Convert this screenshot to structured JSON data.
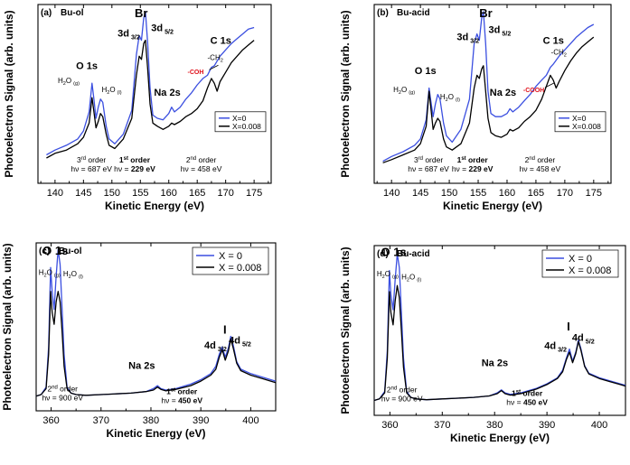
{
  "chart_data": [
    {
      "id": "a",
      "type": "line",
      "panel_label": "(a)",
      "sample": "Bu-ol",
      "xlabel": "Kinetic Energy (eV)",
      "ylabel": "Photoelectron Signal (arb. units)",
      "xlim": [
        137,
        178
      ],
      "ylim": [
        0,
        1
      ],
      "xticks": [
        140,
        145,
        150,
        155,
        160,
        165,
        170,
        175
      ],
      "legend": {
        "position": "right-middle",
        "size": "small",
        "entries": [
          "X=0",
          "X=0.008"
        ]
      },
      "colors": {
        "X=0": "#3b4fe0",
        "X=0.008": "#000000"
      },
      "series": [
        {
          "name": "X=0",
          "x": [
            138.5,
            140,
            142,
            144,
            145,
            146,
            146.5,
            146.8,
            147.2,
            147.6,
            148,
            148.4,
            149,
            149.5,
            150.5,
            152,
            153.5,
            154.3,
            154.8,
            155.2,
            155.6,
            155.9,
            156.3,
            156.7,
            157.2,
            158,
            159,
            160,
            160.5,
            161,
            162,
            163,
            164,
            165,
            166,
            166.8,
            167.5,
            168,
            169,
            170,
            171,
            172,
            173,
            174,
            175
          ],
          "y": [
            0.1,
            0.13,
            0.16,
            0.2,
            0.25,
            0.37,
            0.55,
            0.46,
            0.33,
            0.4,
            0.45,
            0.43,
            0.28,
            0.2,
            0.17,
            0.23,
            0.38,
            0.73,
            0.85,
            0.82,
            0.96,
            1.0,
            0.8,
            0.52,
            0.35,
            0.33,
            0.32,
            0.36,
            0.4,
            0.37,
            0.4,
            0.45,
            0.49,
            0.54,
            0.58,
            0.6,
            0.65,
            0.66,
            0.72,
            0.76,
            0.8,
            0.83,
            0.86,
            0.89,
            0.9
          ]
        },
        {
          "name": "X=0.008",
          "x": [
            138.5,
            140,
            142,
            144,
            145,
            146,
            146.5,
            146.8,
            147.2,
            147.6,
            148,
            148.4,
            149,
            149.5,
            150.5,
            152,
            153.5,
            154.3,
            154.8,
            155.2,
            155.6,
            155.9,
            156.3,
            156.7,
            157.2,
            158,
            159,
            160,
            160.5,
            161,
            162,
            163,
            164,
            165,
            166,
            166.8,
            167.5,
            168,
            168.5,
            169,
            170,
            171,
            172,
            173,
            174,
            175
          ],
          "y": [
            0.08,
            0.11,
            0.13,
            0.17,
            0.21,
            0.3,
            0.46,
            0.38,
            0.27,
            0.31,
            0.36,
            0.34,
            0.23,
            0.16,
            0.14,
            0.2,
            0.33,
            0.6,
            0.72,
            0.7,
            0.8,
            0.82,
            0.64,
            0.42,
            0.3,
            0.28,
            0.26,
            0.28,
            0.3,
            0.29,
            0.31,
            0.34,
            0.36,
            0.39,
            0.44,
            0.52,
            0.58,
            0.55,
            0.5,
            0.56,
            0.62,
            0.68,
            0.72,
            0.76,
            0.79,
            0.82
          ]
        }
      ],
      "peak_labels": {
        "br": "Br",
        "d32": "3d 3/2",
        "d52": "3d 5/2",
        "o1s": "O 1s",
        "h2og": "H2O (g)",
        "h2ol": "H2O (l)",
        "na2s": "Na 2s",
        "c1s": "C 1s",
        "ch2": "-CH2",
        "func": "-COH"
      },
      "order_labels": {
        "third": "3rd order",
        "third_hv": "hν = 687 eV",
        "first": "1st order",
        "first_hv": "hν = 229 eV",
        "second": "2nd order",
        "second_hv": "hν = 458 eV"
      }
    },
    {
      "id": "b",
      "type": "line",
      "panel_label": "(b)",
      "sample": "Bu-acid",
      "xlabel": "Kinetic Energy (eV)",
      "ylabel": "Photoelectron Signal (arb. units)",
      "xlim": [
        137,
        178
      ],
      "ylim": [
        0,
        1
      ],
      "xticks": [
        140,
        145,
        150,
        155,
        160,
        165,
        170,
        175
      ],
      "legend": {
        "position": "right-middle",
        "size": "small",
        "entries": [
          "X=0",
          "X=0.008"
        ]
      },
      "colors": {
        "X=0": "#3b4fe0",
        "X=0.008": "#000000"
      },
      "series": [
        {
          "name": "X=0",
          "x": [
            138.5,
            140,
            142,
            144,
            145,
            146,
            146.5,
            146.8,
            147.2,
            147.6,
            148,
            148.4,
            149,
            149.5,
            150.5,
            152,
            153.5,
            154.3,
            154.8,
            155.2,
            155.6,
            155.9,
            156.3,
            156.7,
            157.2,
            158,
            159,
            160,
            160.5,
            161,
            162,
            163,
            164,
            165,
            166,
            166.8,
            167.5,
            168,
            169,
            170,
            171,
            172,
            173,
            174,
            175
          ],
          "y": [
            0.06,
            0.09,
            0.12,
            0.16,
            0.2,
            0.32,
            0.52,
            0.44,
            0.34,
            0.42,
            0.48,
            0.45,
            0.3,
            0.22,
            0.18,
            0.26,
            0.45,
            0.8,
            0.86,
            0.82,
            0.96,
            1.0,
            0.8,
            0.5,
            0.36,
            0.34,
            0.34,
            0.36,
            0.39,
            0.37,
            0.4,
            0.44,
            0.48,
            0.53,
            0.57,
            0.6,
            0.65,
            0.67,
            0.72,
            0.76,
            0.8,
            0.84,
            0.87,
            0.9,
            0.92
          ]
        },
        {
          "name": "X=0.008",
          "x": [
            138.5,
            140,
            142,
            144,
            145,
            146,
            146.5,
            146.8,
            147.2,
            147.6,
            148,
            148.4,
            149,
            149.5,
            150.5,
            152,
            153.5,
            154.3,
            154.8,
            155.2,
            155.6,
            155.9,
            156.3,
            156.7,
            157.2,
            158,
            159,
            160,
            160.5,
            161,
            162,
            163,
            164,
            165,
            166,
            166.8,
            167.5,
            168,
            168.5,
            169,
            170,
            171,
            172,
            173,
            174,
            175
          ],
          "y": [
            0.05,
            0.07,
            0.1,
            0.13,
            0.17,
            0.28,
            0.5,
            0.4,
            0.26,
            0.3,
            0.33,
            0.31,
            0.2,
            0.15,
            0.13,
            0.17,
            0.3,
            0.52,
            0.6,
            0.58,
            0.64,
            0.66,
            0.5,
            0.33,
            0.24,
            0.22,
            0.21,
            0.23,
            0.26,
            0.25,
            0.27,
            0.31,
            0.34,
            0.38,
            0.45,
            0.53,
            0.6,
            0.57,
            0.52,
            0.56,
            0.63,
            0.69,
            0.74,
            0.78,
            0.81,
            0.84
          ]
        }
      ],
      "peak_labels": {
        "br": "Br",
        "d32": "3d 3/2",
        "d52": "3d 5/2",
        "o1s": "O 1s",
        "h2og": "H2O (g)",
        "h2ol": "H2O (l)",
        "na2s": "Na 2s",
        "c1s": "C 1s",
        "ch2": "-CH2",
        "func": "-COOH"
      },
      "order_labels": {
        "third": "3rd order",
        "third_hv": "hν = 687 eV",
        "first": "1st order",
        "first_hv": "hν = 229 eV",
        "second": "2nd order",
        "second_hv": "hν = 458 eV"
      }
    },
    {
      "id": "c",
      "type": "line",
      "panel_label": "(c)",
      "sample": "Bu-ol",
      "xlabel": "Kinetic Energy (eV)",
      "ylabel": "Photoelectron Signal (arb. units)",
      "xlim": [
        357,
        405
      ],
      "ylim": [
        0,
        1
      ],
      "xticks": [
        360,
        370,
        380,
        390,
        400
      ],
      "legend": {
        "position": "top-right",
        "size": "large",
        "entries": [
          "X = 0",
          "X = 0.008"
        ]
      },
      "colors": {
        "X = 0": "#3b4fe0",
        "X = 0.008": "#000000"
      },
      "series": [
        {
          "name": "X = 0",
          "x": [
            357,
            358,
            359,
            359.5,
            359.9,
            360.2,
            360.6,
            361,
            361.4,
            361.8,
            362.2,
            362.6,
            363.2,
            364,
            365,
            367,
            370,
            373,
            376,
            379,
            380.5,
            381.3,
            382,
            383,
            385,
            388,
            390,
            392,
            393,
            393.7,
            394.3,
            394.9,
            395.5,
            396,
            396.5,
            397.2,
            398,
            400,
            402,
            404,
            405
          ],
          "y": [
            0.02,
            0.03,
            0.08,
            0.35,
            0.88,
            0.72,
            0.6,
            0.82,
            1.0,
            0.9,
            0.6,
            0.3,
            0.08,
            0.04,
            0.03,
            0.025,
            0.03,
            0.035,
            0.04,
            0.05,
            0.07,
            0.09,
            0.07,
            0.06,
            0.07,
            0.1,
            0.13,
            0.17,
            0.22,
            0.3,
            0.35,
            0.28,
            0.34,
            0.42,
            0.36,
            0.25,
            0.2,
            0.17,
            0.15,
            0.13,
            0.12
          ]
        },
        {
          "name": "X = 0.008",
          "x": [
            357,
            358,
            359,
            359.5,
            359.9,
            360.2,
            360.6,
            361,
            361.4,
            361.8,
            362.2,
            362.6,
            363.2,
            364,
            365,
            367,
            370,
            373,
            376,
            379,
            380.5,
            381.3,
            382,
            383,
            385,
            388,
            390,
            392,
            393,
            393.7,
            394.3,
            394.9,
            395.5,
            396,
            396.5,
            397.2,
            398,
            400,
            402,
            404,
            405
          ],
          "y": [
            0.02,
            0.03,
            0.07,
            0.3,
            0.72,
            0.58,
            0.5,
            0.65,
            0.72,
            0.65,
            0.45,
            0.22,
            0.07,
            0.04,
            0.03,
            0.025,
            0.03,
            0.035,
            0.04,
            0.05,
            0.06,
            0.08,
            0.065,
            0.055,
            0.065,
            0.09,
            0.12,
            0.16,
            0.2,
            0.28,
            0.33,
            0.26,
            0.32,
            0.4,
            0.34,
            0.24,
            0.19,
            0.16,
            0.14,
            0.12,
            0.11
          ]
        }
      ],
      "peak_labels": {
        "o1s": "O 1s",
        "h2og": "H2O (g)",
        "h2ol": "H2O (l)",
        "na2s": "Na 2s",
        "iodine": "I",
        "d32": "4d 3/2",
        "d52": "4d 5/2"
      },
      "order_labels": {
        "second": "2nd order",
        "second_hv": "hν = 900 eV",
        "first": "1st order",
        "first_hv": "hν = 450 eV"
      }
    },
    {
      "id": "d",
      "type": "line",
      "panel_label": "(d)",
      "sample": "Bu-acid",
      "xlabel": "Kinetic Energy (eV)",
      "ylabel": "Photoelectron Signal (arb. units)",
      "xlim": [
        357,
        405
      ],
      "ylim": [
        0,
        1
      ],
      "xticks": [
        360,
        370,
        380,
        390,
        400
      ],
      "legend": {
        "position": "top-right",
        "size": "large",
        "entries": [
          "X = 0",
          "X = 0.008"
        ]
      },
      "colors": {
        "X = 0": "#3b4fe0",
        "X = 0.008": "#000000"
      },
      "series": [
        {
          "name": "X = 0",
          "x": [
            357,
            358,
            359,
            359.5,
            359.9,
            360.2,
            360.6,
            361,
            361.4,
            361.8,
            362.2,
            362.6,
            363.2,
            364,
            365,
            367,
            370,
            373,
            376,
            379,
            380.5,
            381.3,
            382,
            383,
            385,
            388,
            390,
            392,
            393,
            393.7,
            394.3,
            394.9,
            395.5,
            396,
            396.5,
            397.2,
            398,
            400,
            402,
            404,
            405
          ],
          "y": [
            0.02,
            0.03,
            0.08,
            0.35,
            0.88,
            0.72,
            0.62,
            0.82,
            0.99,
            0.9,
            0.6,
            0.3,
            0.08,
            0.04,
            0.03,
            0.025,
            0.03,
            0.035,
            0.04,
            0.05,
            0.07,
            0.09,
            0.07,
            0.06,
            0.07,
            0.1,
            0.13,
            0.17,
            0.22,
            0.3,
            0.36,
            0.28,
            0.34,
            0.42,
            0.36,
            0.25,
            0.2,
            0.17,
            0.15,
            0.13,
            0.12
          ]
        },
        {
          "name": "X = 0.008",
          "x": [
            357,
            358,
            359,
            359.5,
            359.9,
            360.2,
            360.6,
            361,
            361.4,
            361.8,
            362.2,
            362.6,
            363.2,
            364,
            365,
            367,
            370,
            373,
            376,
            379,
            380.5,
            381.3,
            382,
            383,
            385,
            388,
            390,
            392,
            393,
            393.7,
            394.3,
            394.9,
            395.5,
            396,
            396.5,
            397.2,
            398,
            400,
            402,
            404,
            405
          ],
          "y": [
            0.02,
            0.03,
            0.07,
            0.3,
            0.74,
            0.6,
            0.52,
            0.68,
            0.78,
            0.7,
            0.48,
            0.24,
            0.07,
            0.04,
            0.03,
            0.025,
            0.03,
            0.035,
            0.04,
            0.05,
            0.065,
            0.085,
            0.065,
            0.055,
            0.065,
            0.095,
            0.125,
            0.165,
            0.21,
            0.29,
            0.34,
            0.27,
            0.33,
            0.41,
            0.35,
            0.245,
            0.195,
            0.165,
            0.145,
            0.125,
            0.115
          ]
        }
      ],
      "peak_labels": {
        "o1s": "O 1s",
        "h2og": "H2O (g)",
        "h2ol": "H2O (l)",
        "na2s": "Na 2s",
        "iodine": "I",
        "d32": "4d 3/2",
        "d52": "4d 5/2"
      },
      "order_labels": {
        "second": "2nd order",
        "second_hv": "hν = 900 eV",
        "first": "1st order",
        "first_hv": "hν = 450 eV"
      }
    }
  ]
}
